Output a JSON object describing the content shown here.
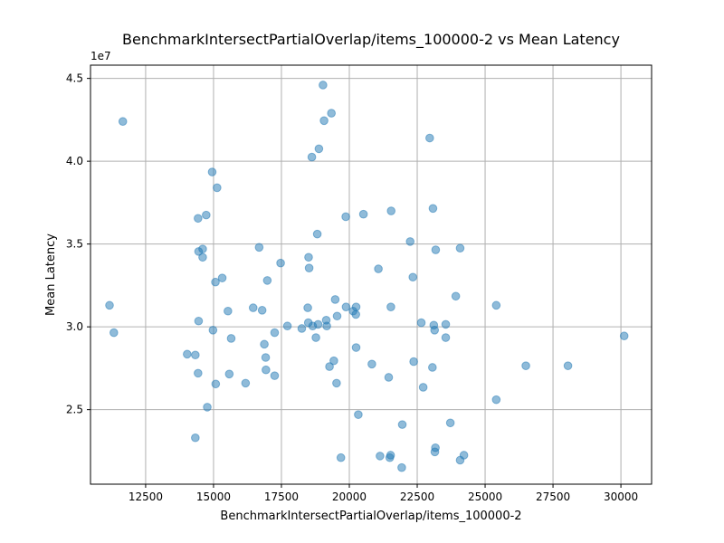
{
  "chart_data": {
    "type": "scatter",
    "title": "BenchmarkIntersectPartialOverlap/items_100000-2 vs Mean Latency",
    "xlabel": "BenchmarkIntersectPartialOverlap/items_100000-2",
    "ylabel": "Mean Latency",
    "y_offset_label": "1e7",
    "xlim": [
      10470,
      31130
    ],
    "ylim": [
      20500000,
      45800000
    ],
    "x_ticks": [
      12500,
      15000,
      17500,
      20000,
      22500,
      25000,
      27500,
      30000
    ],
    "x_tick_labels": [
      "12500",
      "15000",
      "17500",
      "20000",
      "22500",
      "25000",
      "27500",
      "30000"
    ],
    "y_ticks": [
      25000000,
      30000000,
      35000000,
      40000000,
      45000000
    ],
    "y_tick_labels": [
      "2.5",
      "3.0",
      "3.5",
      "4.0",
      "4.5"
    ],
    "grid": true,
    "point_color": "#1f77b4",
    "points": [
      [
        11660,
        42400000
      ],
      [
        11170,
        31300000
      ],
      [
        11330,
        29650000
      ],
      [
        14030,
        28350000
      ],
      [
        14330,
        28300000
      ],
      [
        14330,
        23300000
      ],
      [
        14430,
        36550000
      ],
      [
        14450,
        34550000
      ],
      [
        14450,
        30350000
      ],
      [
        14430,
        27200000
      ],
      [
        14600,
        34700000
      ],
      [
        14600,
        34200000
      ],
      [
        14730,
        36750000
      ],
      [
        14770,
        25150000
      ],
      [
        14950,
        39350000
      ],
      [
        14980,
        29800000
      ],
      [
        15070,
        32700000
      ],
      [
        15080,
        26550000
      ],
      [
        15130,
        38400000
      ],
      [
        15320,
        32950000
      ],
      [
        15530,
        30950000
      ],
      [
        15580,
        27150000
      ],
      [
        15650,
        29300000
      ],
      [
        16180,
        26600000
      ],
      [
        16460,
        31150000
      ],
      [
        16680,
        34800000
      ],
      [
        16790,
        31000000
      ],
      [
        16870,
        28950000
      ],
      [
        16920,
        28150000
      ],
      [
        16930,
        27400000
      ],
      [
        16980,
        32800000
      ],
      [
        17250,
        29650000
      ],
      [
        17250,
        27050000
      ],
      [
        17470,
        33850000
      ],
      [
        17720,
        30050000
      ],
      [
        18250,
        29900000
      ],
      [
        18470,
        31150000
      ],
      [
        18490,
        30250000
      ],
      [
        18500,
        34200000
      ],
      [
        18520,
        33550000
      ],
      [
        18620,
        40250000
      ],
      [
        18650,
        30050000
      ],
      [
        18770,
        29350000
      ],
      [
        18820,
        35600000
      ],
      [
        18850,
        30150000
      ],
      [
        18880,
        40750000
      ],
      [
        19030,
        44600000
      ],
      [
        19070,
        42450000
      ],
      [
        19150,
        30400000
      ],
      [
        19170,
        30050000
      ],
      [
        19270,
        27600000
      ],
      [
        19340,
        42900000
      ],
      [
        19430,
        27950000
      ],
      [
        19480,
        31650000
      ],
      [
        19530,
        26600000
      ],
      [
        19550,
        30650000
      ],
      [
        19690,
        22100000
      ],
      [
        19870,
        36650000
      ],
      [
        19880,
        31200000
      ],
      [
        20140,
        30950000
      ],
      [
        20240,
        30750000
      ],
      [
        20250,
        28750000
      ],
      [
        20250,
        31200000
      ],
      [
        20330,
        24700000
      ],
      [
        20520,
        36800000
      ],
      [
        20830,
        27750000
      ],
      [
        21070,
        33500000
      ],
      [
        21130,
        22200000
      ],
      [
        21450,
        26950000
      ],
      [
        21490,
        22100000
      ],
      [
        21520,
        22250000
      ],
      [
        21530,
        31200000
      ],
      [
        21540,
        37000000
      ],
      [
        21930,
        21500000
      ],
      [
        21950,
        24100000
      ],
      [
        22240,
        35150000
      ],
      [
        22340,
        33000000
      ],
      [
        22370,
        27900000
      ],
      [
        22650,
        30250000
      ],
      [
        22720,
        26350000
      ],
      [
        22960,
        41400000
      ],
      [
        23060,
        27550000
      ],
      [
        23080,
        37150000
      ],
      [
        23110,
        30100000
      ],
      [
        23140,
        29800000
      ],
      [
        23150,
        22450000
      ],
      [
        23170,
        22700000
      ],
      [
        23180,
        34650000
      ],
      [
        23550,
        30150000
      ],
      [
        23550,
        29350000
      ],
      [
        23720,
        24200000
      ],
      [
        23920,
        31850000
      ],
      [
        24080,
        34750000
      ],
      [
        24080,
        21950000
      ],
      [
        24220,
        22250000
      ],
      [
        25410,
        31300000
      ],
      [
        25410,
        25600000
      ],
      [
        26500,
        27650000
      ],
      [
        28050,
        27650000
      ],
      [
        30120,
        29450000
      ]
    ]
  }
}
